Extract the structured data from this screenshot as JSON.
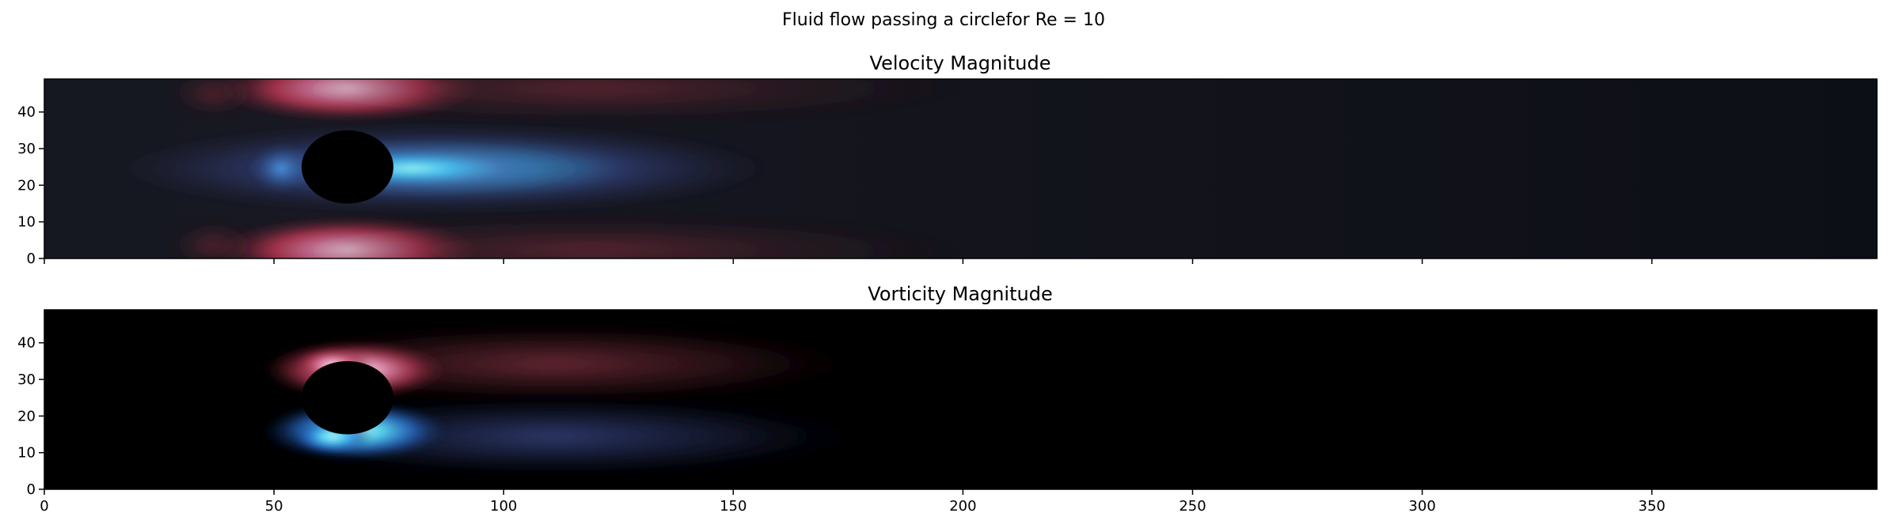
{
  "figure": {
    "suptitle": "Fluid flow passing a circlefor Re = 10"
  },
  "chart_data": [
    {
      "type": "heatmap",
      "title": "Velocity Magnitude",
      "xlabel": "",
      "ylabel": "",
      "xlim": [
        0,
        399
      ],
      "ylim": [
        0,
        49
      ],
      "xticks": [
        0,
        50,
        100,
        150,
        200,
        250,
        300,
        350
      ],
      "yticks": [
        0,
        10,
        20,
        30,
        40
      ],
      "x_tick_labels_shown": false,
      "obstacle": {
        "shape": "circle",
        "center": [
          66,
          25
        ],
        "radius": 10
      },
      "colormap": "diverging (blue–black–red)",
      "colors": {
        "low": "#1a73e8",
        "peak_low": "#7ff5e8",
        "mid": "#0d0d14",
        "high": "#c83a5a",
        "peak_high": "#fad2ee"
      }
    },
    {
      "type": "heatmap",
      "title": "Vorticity Magnitude",
      "xlabel": "",
      "ylabel": "",
      "xlim": [
        0,
        399
      ],
      "ylim": [
        0,
        49
      ],
      "xticks": [
        0,
        50,
        100,
        150,
        200,
        250,
        300,
        350
      ],
      "yticks": [
        0,
        10,
        20,
        30,
        40
      ],
      "x_tick_labels_shown": true,
      "obstacle": {
        "shape": "circle",
        "center": [
          66,
          25
        ],
        "radius": 10
      },
      "colormap": "diverging (blue–black–red)",
      "colors": {
        "low": "#1a73e8",
        "peak_low": "#7ff5e8",
        "mid": "#000000",
        "high": "#c83a5a",
        "peak_high": "#fad2ee"
      }
    }
  ]
}
